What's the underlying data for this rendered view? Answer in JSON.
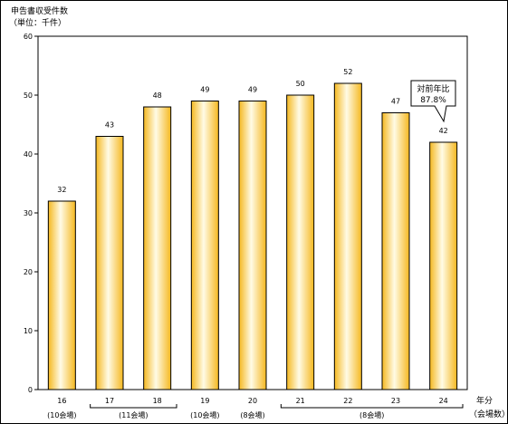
{
  "chart_data": {
    "type": "bar",
    "title": "申告書収受件数",
    "unit_label": "（単位：千件）",
    "categories": [
      "16",
      "17",
      "18",
      "19",
      "20",
      "21",
      "22",
      "23",
      "24"
    ],
    "values": [
      32,
      43,
      48,
      49,
      49,
      50,
      52,
      47,
      42
    ],
    "value_labels": [
      "32",
      "43",
      "48",
      "49",
      "49",
      "50",
      "52",
      "47",
      "42"
    ],
    "ylim": [
      0,
      60
    ],
    "yticks": [
      "0",
      "10",
      "20",
      "30",
      "40",
      "50",
      "60"
    ],
    "xlabel": "年分",
    "xlabel_sub": "（会場数）",
    "venue_groups": [
      {
        "label": "(10会場)",
        "from": 0,
        "to": 0
      },
      {
        "label": "(11会場)",
        "from": 1,
        "to": 2
      },
      {
        "label": "(10会場)",
        "from": 3,
        "to": 3
      },
      {
        "label": "(8会場)",
        "from": 4,
        "to": 4
      },
      {
        "label": "(8会場)",
        "from": 5,
        "to": 8
      }
    ],
    "callout": {
      "title": "対前年比",
      "value": "87.8%",
      "category_index": 8
    },
    "bar_color": "#f5b820",
    "bar_highlight": "#fffbe6",
    "grid": false
  }
}
